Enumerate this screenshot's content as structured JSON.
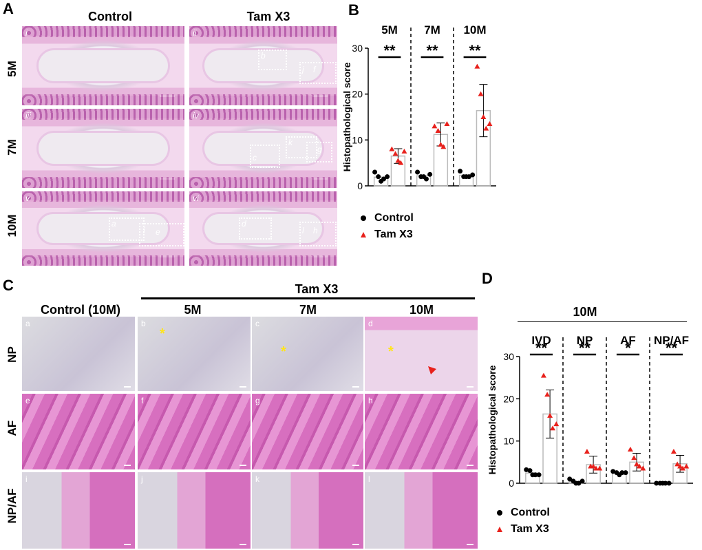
{
  "panels": {
    "A": "A",
    "B": "B",
    "C": "C",
    "D": "D"
  },
  "panelA": {
    "col_headers": [
      "Control",
      "Tam X3"
    ],
    "row_labels": [
      "5M",
      "7M",
      "10M"
    ],
    "image_labels": [
      "i",
      "ii",
      "iii",
      "iv",
      "v",
      "vi"
    ],
    "box_labels": {
      "ii": [
        "b",
        "j",
        "f"
      ],
      "iv": [
        "c",
        "k",
        "g"
      ],
      "v": [
        "a",
        "i",
        "e"
      ],
      "vi": [
        "d",
        "l",
        "h"
      ]
    }
  },
  "panelB": {
    "groups": [
      "5M",
      "7M",
      "10M"
    ],
    "ylabel": "Histopathological score",
    "sig": [
      "**",
      "**",
      "**"
    ],
    "legend": [
      {
        "label": "Control",
        "color": "#000000",
        "marker": "circle"
      },
      {
        "label": "Tam X3",
        "color": "#e8211c",
        "marker": "triangle"
      }
    ]
  },
  "panelC": {
    "top_header": "Tam X3",
    "col_headers": [
      "Control (10M)",
      "5M",
      "7M",
      "10M"
    ],
    "row_labels": [
      "NP",
      "AF",
      "NP/AF"
    ],
    "image_labels": [
      [
        "a",
        "b",
        "c",
        "d"
      ],
      [
        "e",
        "f",
        "g",
        "h"
      ],
      [
        "i",
        "j",
        "k",
        "l"
      ]
    ],
    "asterisk": "*"
  },
  "panelD": {
    "title": "10M",
    "groups": [
      "IVD",
      "NP",
      "AF",
      "NP/AF"
    ],
    "ylabel": "Histopathological score",
    "sig": [
      "**",
      "**",
      "*",
      "**"
    ],
    "legend": [
      {
        "label": "Control",
        "color": "#000000",
        "marker": "circle"
      },
      {
        "label": "Tam X3",
        "color": "#e8211c",
        "marker": "triangle"
      }
    ]
  },
  "chart_data": [
    {
      "type": "bar",
      "panel": "B",
      "categories": [
        "5M",
        "7M",
        "10M"
      ],
      "series": [
        {
          "name": "Control",
          "values": [
            1.9,
            2.2,
            2.3
          ],
          "points": [
            [
              3,
              2,
              1,
              1.5,
              2
            ],
            [
              3,
              2,
              2,
              1.5,
              2.5
            ],
            [
              3.2,
              2,
              2,
              2,
              2.4
            ]
          ]
        },
        {
          "name": "Tam X3",
          "values": [
            6.5,
            11.2,
            16.4
          ],
          "err": [
            1.6,
            2.5,
            5.7
          ],
          "points": [
            [
              8,
              7,
              5.5,
              5,
              7.5
            ],
            [
              13,
              12,
              9,
              8.5,
              13.5
            ],
            [
              26,
              20,
              15,
              12.5,
              13.5
            ]
          ]
        }
      ],
      "ylabel": "Histopathological score",
      "ylim": [
        0,
        30
      ],
      "yticks": [
        0,
        10,
        20,
        30
      ]
    },
    {
      "type": "bar",
      "panel": "D",
      "categories": [
        "IVD",
        "NP",
        "AF",
        "NP/AF"
      ],
      "series": [
        {
          "name": "Control",
          "values": [
            2.4,
            0.4,
            2.4,
            0.1
          ],
          "points": [
            [
              3.2,
              3,
              2,
              2,
              2
            ],
            [
              1,
              0.5,
              0,
              0,
              0.5
            ],
            [
              2.8,
              2.5,
              2,
              2.5,
              2.5
            ],
            [
              0,
              0,
              0,
              0,
              0
            ]
          ]
        },
        {
          "name": "Tam X3",
          "values": [
            16.4,
            4.4,
            5.0,
            4.6
          ],
          "err": [
            5.7,
            2.0,
            2.1,
            2.0
          ],
          "points": [
            [
              25.5,
              21,
              16,
              13,
              14
            ],
            [
              7.5,
              4,
              4,
              3.5,
              3.5
            ],
            [
              8,
              6,
              4.5,
              4,
              3.5
            ],
            [
              7.5,
              4.5,
              4,
              3.5,
              4
            ]
          ]
        }
      ],
      "ylabel": "Histopathological score",
      "ylim": [
        0,
        30
      ],
      "yticks": [
        0,
        10,
        20,
        30
      ]
    }
  ]
}
